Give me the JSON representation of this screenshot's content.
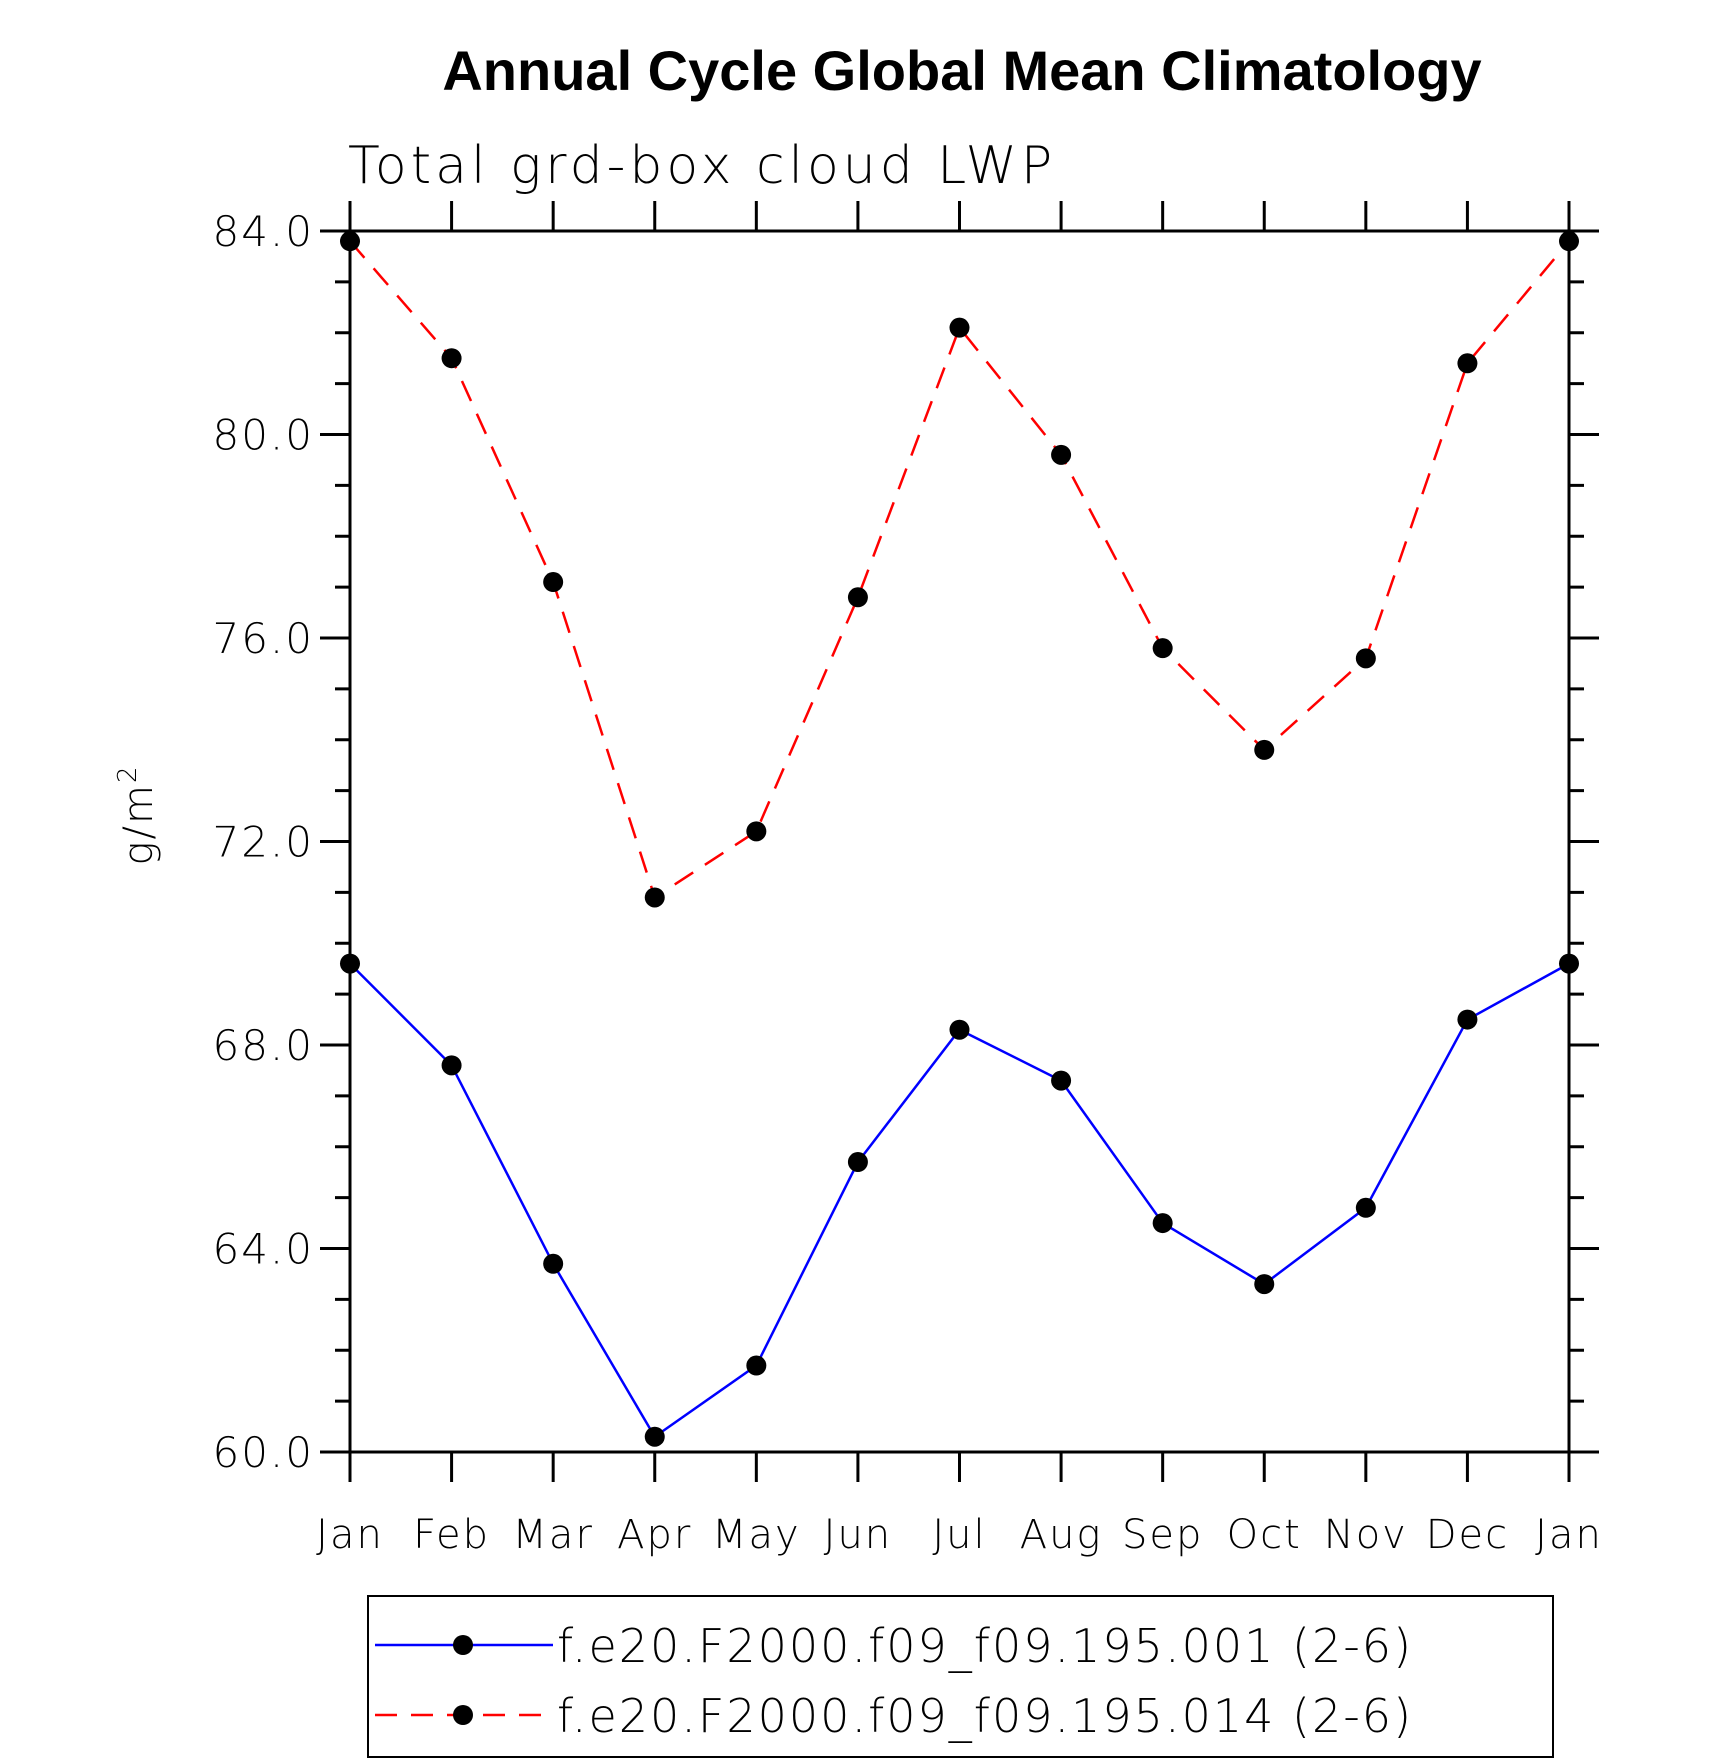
{
  "chart_data": {
    "type": "line",
    "title": "Annual Cycle Global Mean Climatology",
    "subtitle": "Total grd-box cloud LWP",
    "ylabel": "g/m",
    "ylabel_superscript": "2",
    "ylim": [
      60.0,
      84.0
    ],
    "yticks": [
      "60.0",
      "64.0",
      "68.0",
      "72.0",
      "76.0",
      "80.0",
      "84.0"
    ],
    "categories": [
      "Jan",
      "Feb",
      "Mar",
      "Apr",
      "May",
      "Jun",
      "Jul",
      "Aug",
      "Sep",
      "Oct",
      "Nov",
      "Dec",
      "Jan"
    ],
    "series": [
      {
        "name": "f.e20.F2000.f09_f09.195.001 (2-6)",
        "color": "#0000ff",
        "dash": "solid",
        "marker": "filled-circle",
        "values": [
          69.6,
          67.6,
          63.7,
          60.3,
          61.7,
          65.7,
          68.3,
          67.3,
          64.5,
          63.3,
          64.8,
          68.5,
          69.6
        ]
      },
      {
        "name": "f.e20.F2000.f09_f09.195.014 (2-6)",
        "color": "#ff0000",
        "dash": "dashed",
        "marker": "filled-circle",
        "values": [
          83.8,
          81.5,
          77.1,
          70.9,
          72.2,
          76.8,
          82.1,
          79.6,
          75.8,
          73.8,
          75.6,
          81.4,
          83.8
        ]
      }
    ],
    "grid": false,
    "legend_position": "bottom-center"
  }
}
